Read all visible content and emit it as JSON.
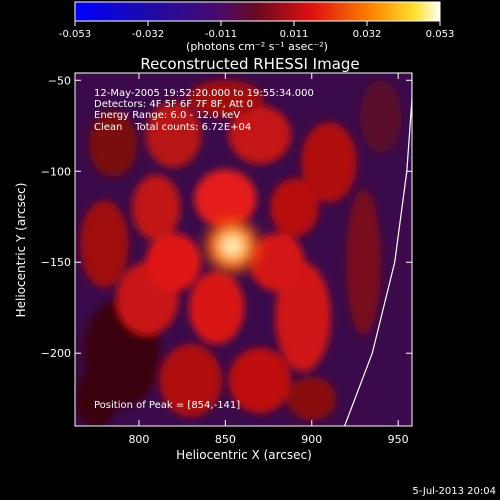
{
  "colorbar": {
    "ticks": [
      "-0.053",
      "-0.032",
      "-0.011",
      "0.011",
      "0.032",
      "0.053"
    ],
    "unit_label": "(photons cm⁻² s⁻¹ asec⁻²)",
    "range": [
      -0.053,
      0.053
    ]
  },
  "chart_data": {
    "type": "heatmap",
    "title": "Reconstructed RHESSI Image",
    "xlabel": "Heliocentric X (arcsec)",
    "ylabel": "Heliocentric Y (arcsec)",
    "xlim": [
      763,
      958
    ],
    "ylim": [
      -240,
      -46
    ],
    "xticks": [
      {
        "value": 800,
        "label": "800"
      },
      {
        "value": 850,
        "label": "850"
      },
      {
        "value": 900,
        "label": "900"
      },
      {
        "value": 950,
        "label": "950"
      }
    ],
    "yticks": [
      {
        "value": -50,
        "label": "−50"
      },
      {
        "value": -100,
        "label": "−100"
      },
      {
        "value": -150,
        "label": "−150"
      },
      {
        "value": -200,
        "label": "−200"
      }
    ],
    "annotations": [
      "12-May-2005 19:52:20.000 to 19:55:34.000",
      "Detectors: 4F 5F 6F 7F 8F, Att 0",
      "Energy Range: 6.0 - 12.0 keV",
      "Clean    Total counts: 6.72E+04"
    ],
    "peak_label": "Position of Peak = [854,-141]",
    "peak": {
      "x": 854,
      "y": -141,
      "value": 0.053
    },
    "limb_curve": [
      [
        919,
        -240
      ],
      [
        935,
        -200
      ],
      [
        948,
        -150
      ],
      [
        955,
        -100
      ],
      [
        958,
        -60
      ],
      [
        958,
        -46
      ]
    ]
  },
  "footer": {
    "timestamp": "5-Jul-2013 20:04"
  }
}
